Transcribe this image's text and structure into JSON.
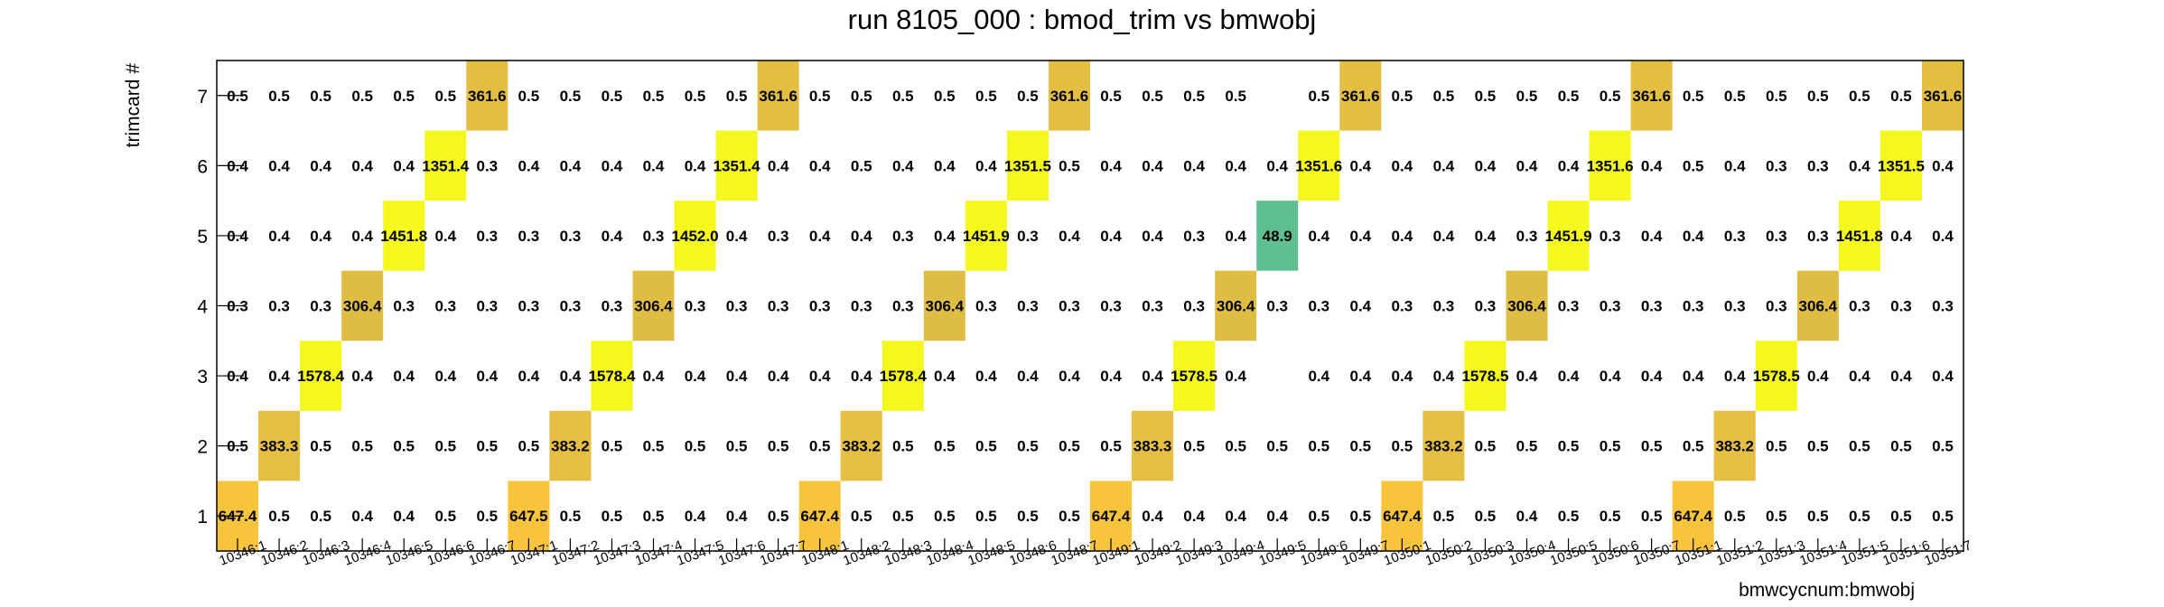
{
  "chart_data": {
    "type": "heatmap",
    "title": "run 8105_000 : bmod_trim vs bmwobj",
    "xlabel": "bmwcycnum:bmwobj",
    "ylabel": "trimcard #",
    "y_categories": [
      "1",
      "2",
      "3",
      "4",
      "5",
      "6",
      "7"
    ],
    "x_categories": [
      "10346:1",
      "10346:2",
      "10346:3",
      "10346:4",
      "10346:5",
      "10346:6",
      "10346:7",
      "10347:1",
      "10347:2",
      "10347:3",
      "10347:4",
      "10347:5",
      "10347:6",
      "10347:7",
      "10348:1",
      "10348:2",
      "10348:3",
      "10348:4",
      "10348:5",
      "10348:6",
      "10348:7",
      "10349:1",
      "10349:2",
      "10349:3",
      "10349:4",
      "10349:5",
      "10349:6",
      "10349:7",
      "10350:1",
      "10350:2",
      "10350:3",
      "10350:4",
      "10350:5",
      "10350:6",
      "10350:7",
      "10351:1",
      "10351:2",
      "10351:3",
      "10351:4",
      "10351:5",
      "10351:6",
      "10351:7"
    ],
    "rows": [
      {
        "y": "1",
        "values": [
          647.4,
          0.5,
          0.5,
          0.4,
          0.4,
          0.5,
          0.5,
          647.5,
          0.5,
          0.5,
          0.5,
          0.4,
          0.4,
          0.5,
          647.4,
          0.5,
          0.5,
          0.5,
          0.5,
          0.5,
          0.5,
          647.4,
          0.4,
          0.4,
          0.4,
          0.4,
          0.5,
          0.5,
          647.4,
          0.5,
          0.5,
          0.4,
          0.5,
          0.5,
          0.5,
          647.4,
          0.5,
          0.5,
          0.5,
          0.5,
          0.5,
          0.5
        ]
      },
      {
        "y": "2",
        "values": [
          0.5,
          383.3,
          0.5,
          0.5,
          0.5,
          0.5,
          0.5,
          0.5,
          383.2,
          0.5,
          0.5,
          0.5,
          0.5,
          0.5,
          0.5,
          383.2,
          0.5,
          0.5,
          0.5,
          0.5,
          0.5,
          0.5,
          383.3,
          0.5,
          0.5,
          0.5,
          0.5,
          0.5,
          0.5,
          383.2,
          0.5,
          0.5,
          0.5,
          0.5,
          0.5,
          0.5,
          383.2,
          0.5,
          0.5,
          0.5,
          0.5,
          0.5
        ]
      },
      {
        "y": "3",
        "values": [
          0.4,
          0.4,
          1578.4,
          0.4,
          0.4,
          0.4,
          0.4,
          0.4,
          0.4,
          1578.4,
          0.4,
          0.4,
          0.4,
          0.4,
          0.4,
          0.4,
          1578.4,
          0.4,
          0.4,
          0.4,
          0.4,
          0.4,
          0.4,
          1578.5,
          0.4,
          null,
          0.4,
          0.4,
          0.4,
          0.4,
          1578.5,
          0.4,
          0.4,
          0.4,
          0.4,
          0.4,
          0.4,
          1578.5,
          0.4,
          0.4,
          0.4,
          0.4
        ]
      },
      {
        "y": "4",
        "values": [
          0.3,
          0.3,
          0.3,
          306.4,
          0.3,
          0.3,
          0.3,
          0.3,
          0.3,
          0.3,
          306.4,
          0.3,
          0.3,
          0.3,
          0.3,
          0.3,
          0.3,
          306.4,
          0.3,
          0.3,
          0.3,
          0.3,
          0.3,
          0.3,
          306.4,
          0.3,
          0.3,
          0.4,
          0.3,
          0.3,
          0.3,
          306.4,
          0.3,
          0.3,
          0.3,
          0.3,
          0.3,
          0.3,
          306.4,
          0.3,
          0.3,
          0.3
        ]
      },
      {
        "y": "5",
        "values": [
          0.4,
          0.4,
          0.4,
          0.4,
          1451.8,
          0.4,
          0.3,
          0.3,
          0.3,
          0.4,
          0.3,
          1452.0,
          0.4,
          0.3,
          0.4,
          0.4,
          0.3,
          0.4,
          1451.9,
          0.3,
          0.4,
          0.4,
          0.4,
          0.3,
          0.4,
          48.9,
          0.4,
          0.4,
          0.4,
          0.4,
          0.4,
          0.3,
          1451.9,
          0.3,
          0.4,
          0.4,
          0.3,
          0.3,
          0.3,
          1451.8,
          0.4,
          0.4
        ]
      },
      {
        "y": "6",
        "values": [
          0.4,
          0.4,
          0.4,
          0.4,
          0.4,
          1351.4,
          0.3,
          0.4,
          0.4,
          0.4,
          0.4,
          0.4,
          1351.4,
          0.4,
          0.4,
          0.5,
          0.4,
          0.4,
          0.4,
          1351.5,
          0.5,
          0.4,
          0.4,
          0.4,
          0.4,
          0.4,
          1351.6,
          0.4,
          0.4,
          0.4,
          0.4,
          0.4,
          0.4,
          1351.6,
          0.4,
          0.5,
          0.4,
          0.3,
          0.3,
          0.4,
          1351.5,
          0.4
        ]
      },
      {
        "y": "7",
        "values": [
          0.5,
          0.5,
          0.5,
          0.5,
          0.5,
          0.5,
          361.6,
          0.5,
          0.5,
          0.5,
          0.5,
          0.5,
          0.5,
          361.6,
          0.5,
          0.5,
          0.5,
          0.5,
          0.5,
          0.5,
          361.6,
          0.5,
          0.5,
          0.5,
          0.5,
          null,
          0.5,
          361.6,
          0.5,
          0.5,
          0.5,
          0.5,
          0.5,
          0.5,
          361.6,
          0.5,
          0.5,
          0.5,
          0.5,
          0.5,
          0.5,
          361.6
        ]
      }
    ],
    "color_scale": {
      "stops": [
        {
          "value": 40,
          "color": "#5bbf94"
        },
        {
          "value": 300,
          "color": "#dfbd45"
        },
        {
          "value": 650,
          "color": "#f8c43c"
        },
        {
          "value": 1300,
          "color": "#f5f81e"
        }
      ]
    },
    "grid": false,
    "legend": "none"
  }
}
